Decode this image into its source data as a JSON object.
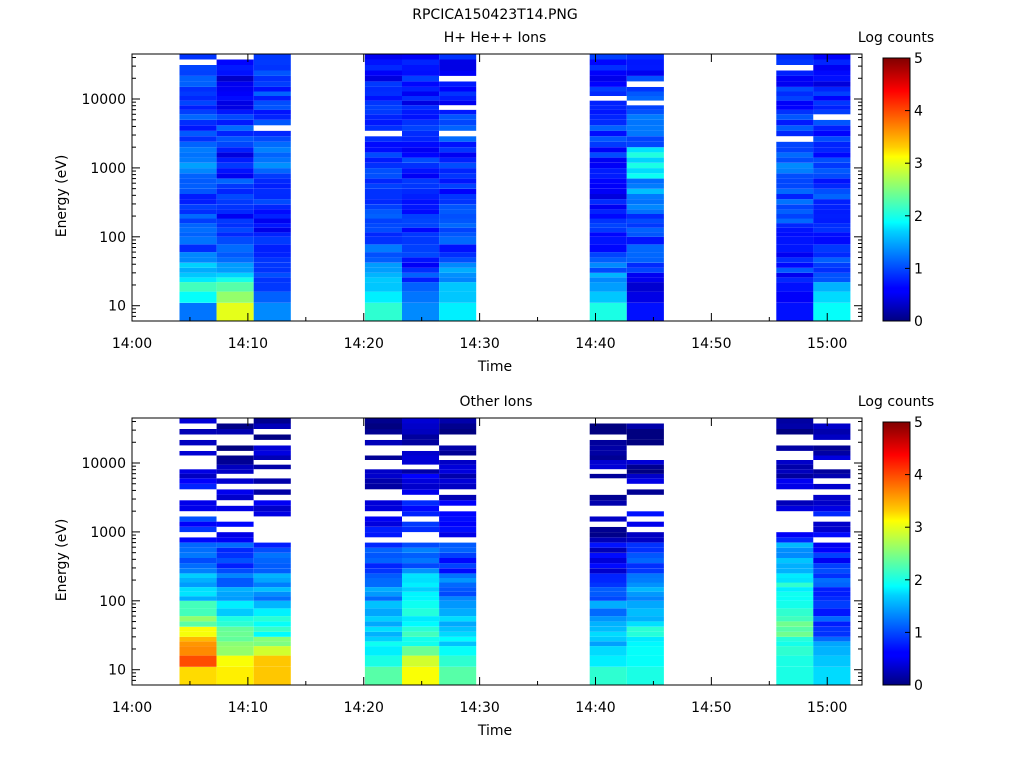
{
  "figure_title": "RPCICA150423T14.PNG",
  "chart_data": [
    {
      "type": "heatmap",
      "title": "H+ He++ Ions",
      "xlabel": "Time",
      "ylabel": "Energy (eV)",
      "x_tick_labels": [
        "14:00",
        "14:10",
        "14:20",
        "14:30",
        "14:40",
        "14:50",
        "15:00"
      ],
      "x_tick_minutes": [
        0,
        10,
        20,
        30,
        40,
        50,
        60
      ],
      "xlim_minutes": [
        0,
        63
      ],
      "y_scale": "log",
      "ylim": [
        6,
        45000
      ],
      "y_tick_labels": [
        "10",
        "100",
        "1000",
        "10000"
      ],
      "y_tick_values": [
        10,
        100,
        1000,
        10000
      ],
      "colorbar": {
        "label": "Log counts",
        "range": [
          0,
          5
        ],
        "tick_labels": [
          "0",
          "1",
          "2",
          "3",
          "4",
          "5"
        ]
      },
      "time_blocks_minutes": [
        [
          4.1,
          7.3
        ],
        [
          7.3,
          10.5
        ],
        [
          10.5,
          13.7
        ],
        [
          20.1,
          23.3
        ],
        [
          23.3,
          26.5
        ],
        [
          26.5,
          29.7
        ],
        [
          39.5,
          42.7
        ],
        [
          42.7,
          45.9
        ],
        [
          55.6,
          58.8
        ],
        [
          58.8,
          62.0
        ]
      ],
      "energy_bins": [
        6,
        11,
        16,
        22,
        30,
        42,
        60,
        100,
        250,
        700,
        2000,
        6000,
        15000,
        45000
      ],
      "log_counts": [
        [
          1.2,
          1.9,
          2.2,
          1.7,
          1.4,
          1.2,
          1.0,
          1.0,
          0.9,
          1.3,
          0.9,
          0.8,
          1.0
        ],
        [
          3.0,
          2.6,
          2.3,
          1.9,
          1.5,
          1.2,
          1.0,
          0.8,
          0.9,
          0.7,
          0.9,
          0.7,
          0.6
        ],
        [
          1.3,
          1.1,
          0.9,
          1.0,
          0.8,
          0.8,
          0.7,
          0.7,
          0.9,
          1.1,
          1.0,
          0.9,
          1.0
        ],
        [
          2.1,
          1.8,
          1.6,
          1.5,
          1.3,
          1.2,
          1.1,
          1.0,
          0.9,
          0.8,
          0.9,
          0.8,
          0.7
        ],
        [
          1.3,
          1.2,
          1.1,
          0.9,
          0.7,
          0.8,
          0.8,
          0.8,
          0.9,
          0.8,
          0.8,
          0.7,
          0.7
        ],
        [
          1.8,
          1.6,
          1.6,
          1.5,
          1.3,
          1.1,
          0.9,
          0.9,
          0.8,
          0.8,
          0.9,
          0.8,
          0.7
        ],
        [
          2.0,
          1.6,
          1.4,
          1.3,
          1.2,
          1.0,
          0.9,
          0.8,
          0.7,
          0.8,
          0.9,
          0.8,
          0.7
        ],
        [
          0.7,
          0.5,
          0.4,
          0.6,
          0.8,
          0.9,
          0.9,
          1.0,
          1.4,
          1.8,
          1.1,
          0.9,
          0.8
        ],
        [
          0.7,
          0.6,
          0.7,
          0.8,
          0.9,
          0.8,
          0.8,
          0.9,
          1.0,
          1.1,
          0.9,
          0.8,
          0.7
        ],
        [
          1.9,
          1.7,
          1.5,
          1.2,
          1.0,
          0.9,
          0.8,
          0.8,
          0.9,
          0.9,
          0.8,
          0.7,
          0.6
        ]
      ]
    },
    {
      "type": "heatmap",
      "title": "Other Ions",
      "xlabel": "Time",
      "ylabel": "Energy (eV)",
      "x_tick_labels": [
        "14:00",
        "14:10",
        "14:20",
        "14:30",
        "14:40",
        "14:50",
        "15:00"
      ],
      "x_tick_minutes": [
        0,
        10,
        20,
        30,
        40,
        50,
        60
      ],
      "xlim_minutes": [
        0,
        63
      ],
      "y_scale": "log",
      "ylim": [
        6,
        45000
      ],
      "y_tick_labels": [
        "10",
        "100",
        "1000",
        "10000"
      ],
      "y_tick_values": [
        10,
        100,
        1000,
        10000
      ],
      "colorbar": {
        "label": "Log counts",
        "range": [
          0,
          5
        ],
        "tick_labels": [
          "0",
          "1",
          "2",
          "3",
          "4",
          "5"
        ]
      },
      "time_blocks_minutes": [
        [
          4.1,
          7.3
        ],
        [
          7.3,
          10.5
        ],
        [
          10.5,
          13.7
        ],
        [
          20.1,
          23.3
        ],
        [
          23.3,
          26.5
        ],
        [
          26.5,
          29.7
        ],
        [
          39.5,
          42.7
        ],
        [
          42.7,
          45.9
        ],
        [
          55.6,
          58.8
        ],
        [
          58.8,
          62.0
        ]
      ],
      "energy_bins": [
        6,
        11,
        16,
        22,
        30,
        42,
        60,
        100,
        250,
        700,
        2000,
        6000,
        15000,
        45000
      ],
      "log_counts": [
        [
          3.3,
          4.0,
          3.7,
          3.4,
          3.1,
          2.5,
          2.0,
          1.6,
          1.2,
          0.8,
          0.6,
          0.3,
          0.2
        ],
        [
          3.2,
          3.1,
          2.6,
          2.4,
          2.2,
          1.9,
          1.6,
          1.3,
          1.0,
          0.7,
          0.5,
          0.3,
          0.2
        ],
        [
          3.4,
          3.4,
          2.9,
          2.5,
          2.1,
          1.9,
          1.7,
          1.4,
          1.0,
          0.7,
          0.4,
          0.3,
          0.2
        ],
        [
          2.3,
          2.0,
          1.8,
          1.7,
          1.6,
          1.6,
          1.5,
          1.3,
          0.9,
          0.6,
          0.4,
          0.3,
          0.2
        ],
        [
          3.1,
          2.9,
          2.4,
          2.2,
          2.0,
          1.9,
          1.8,
          1.6,
          1.2,
          0.8,
          0.6,
          0.4,
          0.3
        ],
        [
          2.3,
          2.1,
          1.9,
          1.8,
          1.6,
          1.5,
          1.4,
          1.2,
          0.9,
          0.6,
          0.4,
          0.3,
          0.0
        ],
        [
          2.1,
          1.8,
          1.7,
          1.6,
          1.5,
          1.4,
          1.3,
          1.0,
          0.5,
          0.3,
          0.2,
          0.2,
          0.0
        ],
        [
          2.0,
          1.9,
          1.9,
          1.8,
          1.9,
          1.7,
          1.6,
          1.3,
          0.9,
          0.5,
          0.3,
          0.2,
          0.0
        ],
        [
          2.0,
          2.0,
          2.1,
          2.1,
          2.2,
          2.3,
          2.2,
          1.9,
          1.5,
          0.8,
          0.4,
          0.3,
          0.0
        ],
        [
          1.7,
          1.6,
          1.5,
          1.3,
          1.1,
          1.0,
          0.9,
          1.0,
          0.8,
          0.6,
          0.4,
          0.3,
          0.2
        ]
      ]
    }
  ]
}
